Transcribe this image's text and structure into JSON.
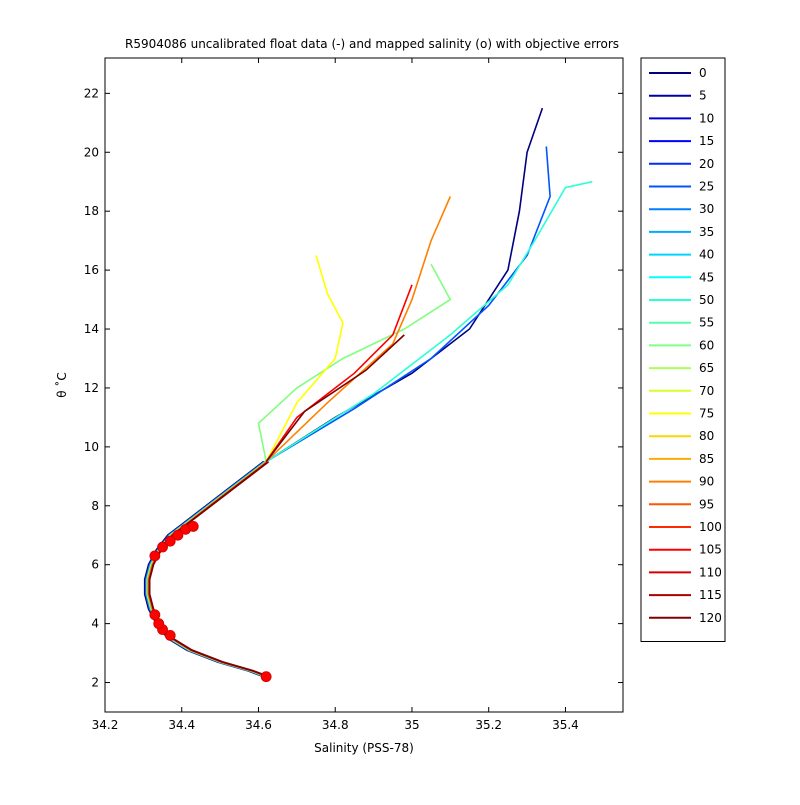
{
  "chart_data": {
    "type": "line",
    "title": "R5904086 uncalibrated float data (-) and mapped salinity (o) with objective errors",
    "xlabel": "Salinity (PSS-78)",
    "ylabel": "θ ˚C",
    "xlim": [
      34.2,
      35.55
    ],
    "ylim": [
      1.0,
      23.2
    ],
    "xticks": [
      "34.2",
      "34.4",
      "34.6",
      "34.8",
      "35",
      "35.2",
      "35.4"
    ],
    "yticks": [
      "2",
      "4",
      "6",
      "8",
      "10",
      "12",
      "14",
      "16",
      "18",
      "20",
      "22"
    ],
    "grid": false,
    "legend_position": "outside-right",
    "colormap": "jet",
    "legend_entries": [
      "0",
      "5",
      "10",
      "15",
      "20",
      "25",
      "30",
      "35",
      "40",
      "45",
      "50",
      "55",
      "60",
      "65",
      "70",
      "75",
      "80",
      "85",
      "90",
      "95",
      "100",
      "105",
      "110",
      "115",
      "120"
    ],
    "deep_curve": [
      [
        34.62,
        2.2
      ],
      [
        34.58,
        2.4
      ],
      [
        34.5,
        2.7
      ],
      [
        34.42,
        3.1
      ],
      [
        34.37,
        3.5
      ],
      [
        34.34,
        4.0
      ],
      [
        34.32,
        4.5
      ],
      [
        34.31,
        5.0
      ],
      [
        34.31,
        5.5
      ],
      [
        34.32,
        6.0
      ],
      [
        34.34,
        6.5
      ],
      [
        34.37,
        7.0
      ],
      [
        34.42,
        7.5
      ],
      [
        34.48,
        8.1
      ],
      [
        34.55,
        8.8
      ],
      [
        34.62,
        9.5
      ]
    ],
    "representative_profiles": [
      {
        "name": "0",
        "points": [
          [
            34.62,
            9.5
          ],
          [
            34.8,
            11.0
          ],
          [
            35.0,
            12.5
          ],
          [
            35.15,
            14.0
          ],
          [
            35.25,
            16.0
          ],
          [
            35.28,
            18.0
          ],
          [
            35.3,
            20.0
          ],
          [
            35.34,
            21.5
          ]
        ]
      },
      {
        "name": "25",
        "points": [
          [
            34.62,
            9.5
          ],
          [
            34.85,
            11.3
          ],
          [
            35.05,
            13.0
          ],
          [
            35.2,
            14.8
          ],
          [
            35.3,
            16.5
          ],
          [
            35.36,
            18.5
          ],
          [
            35.35,
            20.2
          ]
        ]
      },
      {
        "name": "50",
        "points": [
          [
            34.62,
            9.5
          ],
          [
            34.9,
            11.8
          ],
          [
            35.1,
            13.8
          ],
          [
            35.25,
            15.5
          ],
          [
            35.32,
            17.0
          ],
          [
            35.4,
            18.8
          ],
          [
            35.47,
            19.0
          ]
        ]
      },
      {
        "name": "60",
        "points": [
          [
            34.62,
            9.5
          ],
          [
            34.6,
            10.8
          ],
          [
            34.7,
            12.0
          ],
          [
            34.82,
            13.0
          ],
          [
            34.98,
            14.0
          ],
          [
            35.1,
            15.0
          ],
          [
            35.05,
            16.2
          ]
        ]
      },
      {
        "name": "75",
        "points": [
          [
            34.62,
            9.5
          ],
          [
            34.7,
            11.5
          ],
          [
            34.8,
            13.0
          ],
          [
            34.82,
            14.2
          ],
          [
            34.78,
            15.2
          ],
          [
            34.75,
            16.5
          ]
        ]
      },
      {
        "name": "90",
        "points": [
          [
            34.62,
            9.5
          ],
          [
            34.78,
            11.5
          ],
          [
            34.95,
            13.5
          ],
          [
            35.0,
            15.0
          ],
          [
            35.05,
            17.0
          ],
          [
            35.1,
            18.5
          ]
        ]
      },
      {
        "name": "105",
        "points": [
          [
            34.62,
            9.5
          ],
          [
            34.7,
            11.0
          ],
          [
            34.85,
            12.5
          ],
          [
            34.95,
            13.8
          ],
          [
            35.0,
            15.5
          ]
        ]
      },
      {
        "name": "120",
        "points": [
          [
            34.62,
            9.5
          ],
          [
            34.72,
            11.2
          ],
          [
            34.88,
            12.6
          ],
          [
            34.98,
            13.8
          ]
        ]
      }
    ],
    "mapped_points": [
      [
        34.62,
        2.2
      ],
      [
        34.37,
        3.6
      ],
      [
        34.35,
        3.8
      ],
      [
        34.34,
        4.0
      ],
      [
        34.33,
        4.3
      ],
      [
        34.33,
        6.3
      ],
      [
        34.35,
        6.6
      ],
      [
        34.37,
        6.8
      ],
      [
        34.39,
        7.0
      ],
      [
        34.41,
        7.2
      ],
      [
        34.43,
        7.3
      ]
    ]
  }
}
